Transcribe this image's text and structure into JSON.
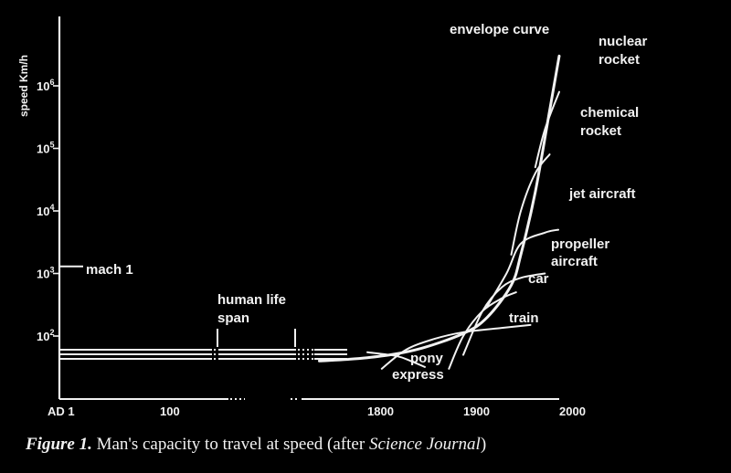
{
  "chart_data": {
    "type": "line",
    "title": "",
    "xlabel": "",
    "ylabel": "speed  Km/h",
    "x_scale": "broken (compressed time)",
    "y_scale": "log",
    "xlim": [
      "AD 1",
      2000
    ],
    "x_ticks": [
      "AD 1",
      "100",
      "1800",
      "1900",
      "2000"
    ],
    "y_ticks": [
      {
        "base": "10",
        "exp": "2"
      },
      {
        "base": "10",
        "exp": "3"
      },
      {
        "base": "10",
        "exp": "4"
      },
      {
        "base": "10",
        "exp": "5"
      },
      {
        "base": "10",
        "exp": "6"
      }
    ],
    "grid": false,
    "series": [
      {
        "name": "envelope curve",
        "points": [
          [
            1750,
            40
          ],
          [
            1800,
            45
          ],
          [
            1850,
            60
          ],
          [
            1900,
            110
          ],
          [
            1925,
            200
          ],
          [
            1950,
            650
          ],
          [
            1960,
            2000
          ],
          [
            1975,
            20000
          ],
          [
            1990,
            400000
          ],
          [
            2000,
            3000000
          ]
        ]
      },
      {
        "name": "nuclear rocket",
        "points": [
          [
            1975,
            50000
          ],
          [
            1985,
            200000
          ],
          [
            2000,
            800000
          ]
        ]
      },
      {
        "name": "chemical rocket",
        "points": [
          [
            1950,
            2000
          ],
          [
            1960,
            10000
          ],
          [
            1975,
            40000
          ],
          [
            1990,
            80000
          ]
        ]
      },
      {
        "name": "jet aircraft",
        "points": [
          [
            1925,
            300
          ],
          [
            1945,
            1000
          ],
          [
            1960,
            3000
          ],
          [
            1985,
            4500
          ],
          [
            1999,
            5000
          ]
        ]
      },
      {
        "name": "propeller aircraft",
        "points": [
          [
            1900,
            50
          ],
          [
            1920,
            250
          ],
          [
            1940,
            600
          ],
          [
            1960,
            850
          ],
          [
            1985,
            1000
          ]
        ]
      },
      {
        "name": "car",
        "points": [
          [
            1885,
            30
          ],
          [
            1900,
            100
          ],
          [
            1920,
            250
          ],
          [
            1940,
            400
          ],
          [
            1955,
            500
          ]
        ]
      },
      {
        "name": "train",
        "points": [
          [
            1815,
            30
          ],
          [
            1840,
            60
          ],
          [
            1870,
            90
          ],
          [
            1900,
            115
          ],
          [
            1940,
            135
          ],
          [
            1970,
            150
          ]
        ]
      },
      {
        "name": "pony express",
        "points": [
          [
            1800,
            55
          ],
          [
            1830,
            48
          ],
          [
            1845,
            40
          ],
          [
            1860,
            32
          ]
        ]
      }
    ],
    "annotations": [
      {
        "text": "mach 1",
        "value": 1300
      },
      {
        "text": "human life span",
        "lines": [
          "human life",
          "span"
        ]
      },
      {
        "text": "pony express",
        "lines": [
          "pony",
          "express"
        ]
      },
      {
        "text": "nuclear rocket",
        "lines": [
          "nuclear",
          "rocket"
        ]
      },
      {
        "text": "chemical rocket",
        "lines": [
          "chemical",
          "rocket"
        ]
      },
      {
        "text": "jet aircraft",
        "lines": [
          "jet aircraft"
        ]
      },
      {
        "text": "propeller aircraft",
        "lines": [
          "propeller",
          "aircraft"
        ]
      },
      {
        "text": "car",
        "lines": [
          "car"
        ]
      },
      {
        "text": "train",
        "lines": [
          "train"
        ]
      },
      {
        "text": "envelope curve",
        "lines": [
          "envelope curve"
        ]
      }
    ]
  },
  "caption": {
    "figure": "Figure 1.",
    "text": " Man's capacity to travel at speed (after ",
    "source": "Science Journal",
    "close": ")"
  },
  "colors": {
    "background": "#000000",
    "ink": "#f2f2f2"
  }
}
